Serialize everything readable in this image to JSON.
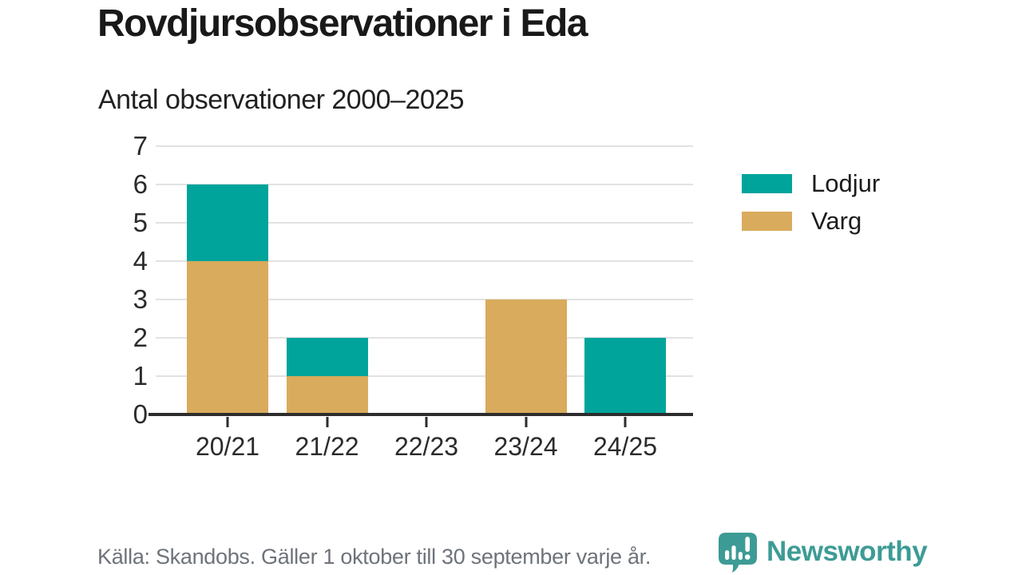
{
  "title": "Rovdjursobservationer i Eda",
  "subtitle": "Antal observationer 2000–2025",
  "footer": {
    "source": "Källa: Skandobs. Gäller 1 oktober till 30 september varje år."
  },
  "branding": {
    "name": "Newsworthy",
    "icon": "speech-bubble-bar-chart-icon",
    "color": "#3d9b95"
  },
  "chart_data": {
    "type": "bar",
    "stacked": true,
    "title": "Rovdjursobservationer i Eda",
    "subtitle": "Antal observationer 2000–2025",
    "categories": [
      "20/21",
      "21/22",
      "22/23",
      "23/24",
      "24/25"
    ],
    "series": [
      {
        "name": "Lodjur",
        "color": "#00A49B",
        "values": [
          2,
          1,
          0,
          0,
          2
        ]
      },
      {
        "name": "Varg",
        "color": "#D9AB5C",
        "values": [
          4,
          1,
          0,
          3,
          0
        ]
      }
    ],
    "stack_order_bottom_to_top": [
      "Varg",
      "Lodjur"
    ],
    "totals": [
      6,
      2,
      0,
      3,
      2
    ],
    "xlabel": "",
    "ylabel": "",
    "ylim": [
      0,
      7
    ],
    "yticks": [
      0,
      1,
      2,
      3,
      4,
      5,
      6,
      7
    ],
    "grid": "horizontal",
    "gridline_color": "#e2e2e2",
    "axis_color": "#2d2d2d",
    "legend_position": "right"
  }
}
